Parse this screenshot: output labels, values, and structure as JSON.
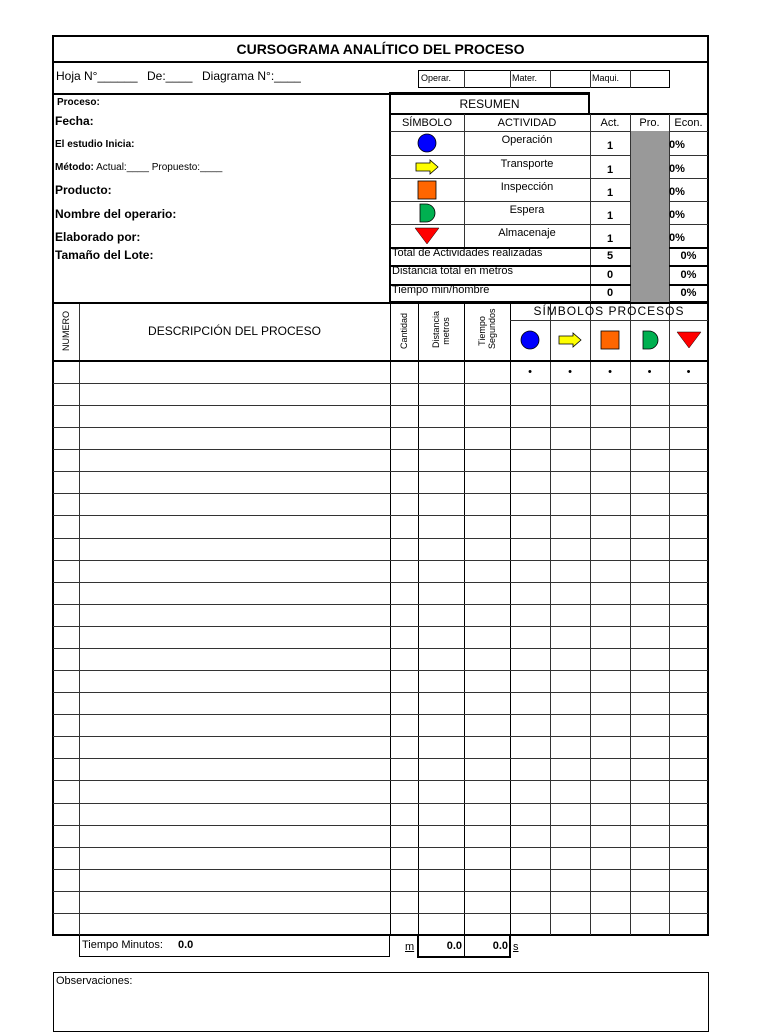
{
  "title": "CURSOGRAMA ANALÍTICO DEL PROCESO",
  "header": {
    "hoja": "Hoja N°______",
    "de": "De:____",
    "diagrama": "Diagrama N°:____",
    "operar": "Operar.",
    "mater": "Mater.",
    "maqui": "Maqui."
  },
  "fields": {
    "proceso": "Proceso:",
    "fecha": "Fecha:",
    "estudio": "El estudio Inicia:",
    "metodo_label": "Método:",
    "metodo_rest": " Actual:____  Propuesto:____",
    "producto": "Producto:",
    "operario": "Nombre del operario:",
    "elaborado": "Elaborado por:",
    "lote": "Tamaño del Lote:"
  },
  "resumen": {
    "title": "RESUMEN",
    "col_simbolo": "SÍMBOLO",
    "col_actividad": "ACTIVIDAD",
    "col_act": "Act.",
    "col_pro": "Pro.",
    "col_econ": "Econ.",
    "rows": [
      {
        "symbol": "circle-blue",
        "actividad": "Operación",
        "act": "1",
        "econ": "0%"
      },
      {
        "symbol": "arrow-yellow",
        "actividad": "Transporte",
        "act": "1",
        "econ": "0%"
      },
      {
        "symbol": "square-orange",
        "actividad": "Inspección",
        "act": "1",
        "econ": "0%"
      },
      {
        "symbol": "d-green",
        "actividad": "Espera",
        "act": "1",
        "econ": "0%"
      },
      {
        "symbol": "triangle-red",
        "actividad": "Almacenaje",
        "act": "1",
        "econ": "0%"
      }
    ],
    "totals": [
      {
        "label": "Total de Actividades realizadas",
        "act": "5",
        "econ": "0%"
      },
      {
        "label": "Distancia total en metros",
        "act": "0",
        "econ": "0%"
      },
      {
        "label": "Tiempo min/hombre",
        "act": "0",
        "econ": "0%"
      }
    ]
  },
  "table": {
    "numero": "NUMERO",
    "descripcion": "DESCRIPCIÓN DEL PROCESO",
    "cantidad": "Cantidad",
    "distancia": "Distancia metros",
    "tiempo": "Tiempo Segundos",
    "simbolos": "SÍMBOLOS PROCESOS",
    "dot": "•"
  },
  "colors": {
    "act": "#ff0000",
    "pro": "#0070c0",
    "circle": "#0000ff",
    "arrow": "#ffff00",
    "square": "#ff6600",
    "d": "#00b050",
    "triangle": "#ff0000"
  },
  "footer": {
    "tiempo_label": "Tiempo Minutos:",
    "tiempo_value": "0.0",
    "m": "m",
    "dist_total": "0.0",
    "time_total": "0.0",
    "s": "s",
    "observaciones": "Observaciones:"
  }
}
